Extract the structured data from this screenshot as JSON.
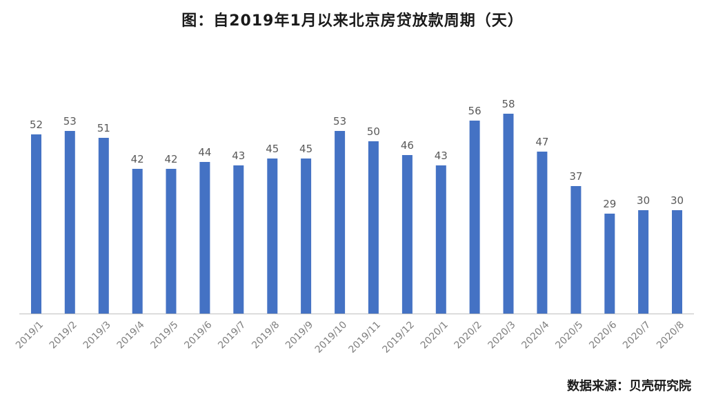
{
  "chart_data": {
    "type": "bar",
    "title": "图：自2019年1月以来北京房贷放款周期（天）",
    "xlabel": "",
    "ylabel": "",
    "ylim": [
      0,
      60
    ],
    "grid": false,
    "legend": "none",
    "bar_color": "#4472C4",
    "categories": [
      "2019/1",
      "2019/2",
      "2019/3",
      "2019/4",
      "2019/5",
      "2019/6",
      "2019/7",
      "2019/8",
      "2019/9",
      "2019/10",
      "2019/11",
      "2019/12",
      "2020/1",
      "2020/2",
      "2020/3",
      "2020/4",
      "2020/5",
      "2020/6",
      "2020/7",
      "2020/8"
    ],
    "values": [
      52,
      53,
      51,
      42,
      42,
      44,
      43,
      45,
      45,
      53,
      50,
      46,
      43,
      56,
      58,
      47,
      37,
      29,
      30,
      30
    ]
  },
  "source": "数据来源：贝壳研究院"
}
